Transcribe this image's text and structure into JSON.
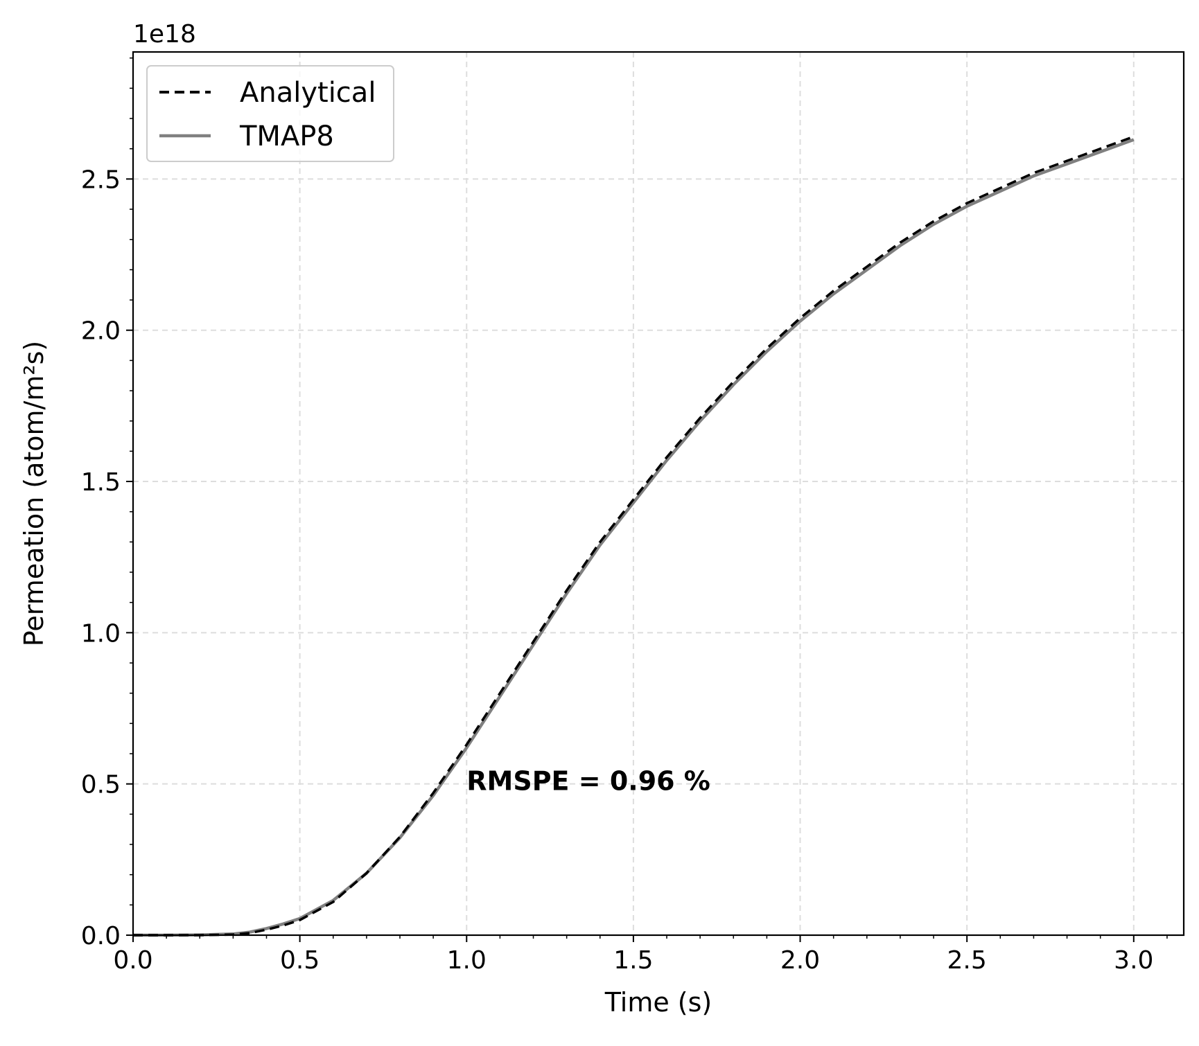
{
  "chart_data": {
    "type": "line",
    "xlabel": "Time (s)",
    "ylabel": "Permeation (atom/m²s)",
    "y_offset_label": "1e18",
    "xlim": [
      0.0,
      3.15
    ],
    "ylim": [
      0.0,
      2.92
    ],
    "x_ticks": [
      0.0,
      0.5,
      1.0,
      1.5,
      2.0,
      2.5,
      3.0
    ],
    "x_tick_labels": [
      "0.0",
      "0.5",
      "1.0",
      "1.5",
      "2.0",
      "2.5",
      "3.0"
    ],
    "y_ticks": [
      0.0,
      0.5,
      1.0,
      1.5,
      2.0,
      2.5
    ],
    "y_tick_labels": [
      "0.0",
      "0.5",
      "1.0",
      "1.5",
      "2.0",
      "2.5"
    ],
    "grid": true,
    "legend_position": "top-left",
    "annotation": {
      "text": "RMSPE = 0.96 %",
      "x": 1.0,
      "y": 0.48
    },
    "series": [
      {
        "name": "Analytical",
        "style": "dashed",
        "color": "#000000",
        "x": [
          0.0,
          0.1,
          0.2,
          0.3,
          0.35,
          0.4,
          0.45,
          0.5,
          0.6,
          0.7,
          0.8,
          0.9,
          1.0,
          1.1,
          1.2,
          1.3,
          1.4,
          1.5,
          1.6,
          1.7,
          1.8,
          1.9,
          2.0,
          2.1,
          2.2,
          2.3,
          2.4,
          2.5,
          2.6,
          2.7,
          2.8,
          2.9,
          3.0
        ],
        "y": [
          0.0,
          0.0,
          0.0,
          0.002,
          0.007,
          0.018,
          0.032,
          0.05,
          0.11,
          0.205,
          0.325,
          0.47,
          0.63,
          0.8,
          0.97,
          1.14,
          1.3,
          1.44,
          1.58,
          1.71,
          1.83,
          1.94,
          2.04,
          2.13,
          2.21,
          2.29,
          2.36,
          2.42,
          2.47,
          2.52,
          2.56,
          2.6,
          2.64
        ]
      },
      {
        "name": "TMAP8",
        "style": "solid",
        "color": "#808080",
        "x": [
          0.0,
          0.1,
          0.2,
          0.3,
          0.35,
          0.4,
          0.45,
          0.5,
          0.6,
          0.7,
          0.8,
          0.9,
          1.0,
          1.1,
          1.2,
          1.3,
          1.4,
          1.5,
          1.6,
          1.7,
          1.8,
          1.9,
          2.0,
          2.1,
          2.2,
          2.3,
          2.4,
          2.5,
          2.6,
          2.7,
          2.8,
          2.9,
          3.0
        ],
        "y": [
          0.0,
          0.0,
          0.001,
          0.004,
          0.01,
          0.022,
          0.037,
          0.055,
          0.115,
          0.205,
          0.322,
          0.462,
          0.62,
          0.79,
          0.96,
          1.13,
          1.29,
          1.43,
          1.57,
          1.7,
          1.82,
          1.93,
          2.03,
          2.12,
          2.2,
          2.28,
          2.35,
          2.41,
          2.46,
          2.51,
          2.55,
          2.59,
          2.63
        ]
      }
    ]
  }
}
